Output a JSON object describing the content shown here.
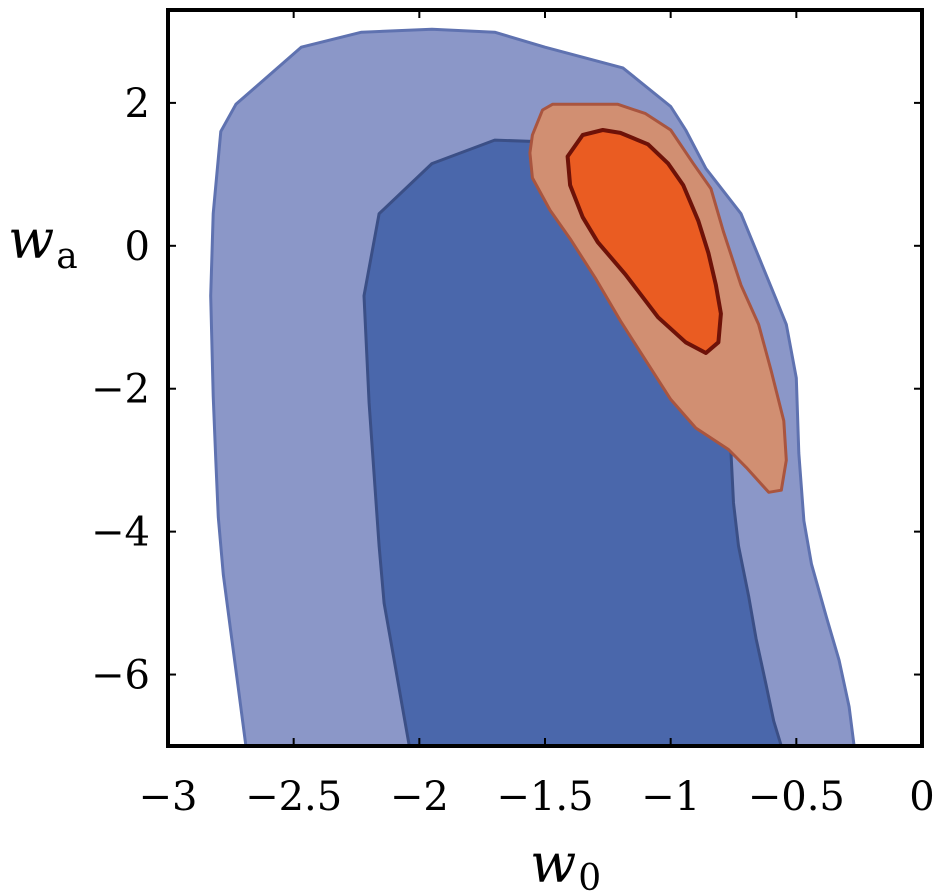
{
  "chart_data": {
    "type": "contour",
    "title": "",
    "xlabel": "w",
    "xlabel_sub": "0",
    "ylabel": "w",
    "ylabel_sub": "a",
    "xlim": [
      -3,
      0
    ],
    "ylim": [
      -7,
      3.3
    ],
    "xticks": [
      -3,
      -2.5,
      -2,
      -1.5,
      -1,
      -0.5,
      0
    ],
    "xtick_labels": [
      "−3",
      "−2.5",
      "−2",
      "−1.5",
      "−1",
      "−0.5",
      "0"
    ],
    "yticks": [
      -6,
      -4,
      -2,
      0,
      2
    ],
    "ytick_labels": [
      "−6",
      "−4",
      "−2",
      "0",
      "2"
    ],
    "grid": false,
    "legend": "none",
    "colors": {
      "blue_outer_fill": "#8b97c8",
      "blue_outer_stroke": "#5f72b0",
      "blue_inner_fill": "#4a67ab",
      "blue_inner_stroke": "#3b4f86",
      "orange_outer_fill": "#d18f72",
      "orange_outer_stroke": "#a9553f",
      "orange_inner_fill": "#ea5c22",
      "orange_inner_stroke": "#6e1208"
    },
    "contours": [
      {
        "id": "blue-outer",
        "level": "outer",
        "fill": "#8b97c8",
        "stroke": "#5f72b0",
        "points": [
          [
            -2.69,
            -7.0
          ],
          [
            -2.72,
            -6.2
          ],
          [
            -2.75,
            -5.4
          ],
          [
            -2.78,
            -4.6
          ],
          [
            -2.8,
            -3.8
          ],
          [
            -2.81,
            -3.0
          ],
          [
            -2.82,
            -2.1
          ],
          [
            -2.83,
            -0.7
          ],
          [
            -2.82,
            0.45
          ],
          [
            -2.79,
            1.6
          ],
          [
            -2.73,
            1.98
          ],
          [
            -2.47,
            2.78
          ],
          [
            -2.23,
            2.99
          ],
          [
            -1.95,
            3.03
          ],
          [
            -1.7,
            2.99
          ],
          [
            -1.5,
            2.78
          ],
          [
            -1.19,
            2.49
          ],
          [
            -1.0,
            1.95
          ],
          [
            -0.94,
            1.62
          ],
          [
            -0.86,
            1.08
          ],
          [
            -0.72,
            0.45
          ],
          [
            -0.65,
            -0.15
          ],
          [
            -0.58,
            -0.75
          ],
          [
            -0.54,
            -1.1
          ],
          [
            -0.5,
            -1.85
          ],
          [
            -0.49,
            -2.9
          ],
          [
            -0.47,
            -3.85
          ],
          [
            -0.44,
            -4.45
          ],
          [
            -0.38,
            -5.2
          ],
          [
            -0.33,
            -5.8
          ],
          [
            -0.29,
            -6.45
          ],
          [
            -0.27,
            -7.0
          ]
        ]
      },
      {
        "id": "blue-inner",
        "level": "inner",
        "fill": "#4a67ab",
        "stroke": "#3b4f86",
        "points": [
          [
            -2.04,
            -7.0
          ],
          [
            -2.07,
            -6.4
          ],
          [
            -2.1,
            -5.8
          ],
          [
            -2.14,
            -5.0
          ],
          [
            -2.16,
            -4.2
          ],
          [
            -2.18,
            -3.2
          ],
          [
            -2.2,
            -2.2
          ],
          [
            -2.22,
            -0.7
          ],
          [
            -2.16,
            0.45
          ],
          [
            -1.95,
            1.15
          ],
          [
            -1.7,
            1.48
          ],
          [
            -1.46,
            1.45
          ],
          [
            -1.34,
            0.85
          ],
          [
            -1.23,
            0.15
          ],
          [
            -1.11,
            -0.45
          ],
          [
            -0.97,
            -1.15
          ],
          [
            -0.86,
            -1.75
          ],
          [
            -0.79,
            -2.35
          ],
          [
            -0.76,
            -2.9
          ],
          [
            -0.75,
            -3.6
          ],
          [
            -0.73,
            -4.2
          ],
          [
            -0.69,
            -4.9
          ],
          [
            -0.66,
            -5.5
          ],
          [
            -0.62,
            -6.15
          ],
          [
            -0.59,
            -6.65
          ],
          [
            -0.56,
            -7.0
          ]
        ]
      },
      {
        "id": "orange-outer",
        "level": "outer",
        "fill": "#d18f72",
        "stroke": "#a9553f",
        "points": [
          [
            -1.55,
            1.55
          ],
          [
            -1.51,
            1.9
          ],
          [
            -1.47,
            1.98
          ],
          [
            -1.21,
            1.98
          ],
          [
            -1.1,
            1.85
          ],
          [
            -1.0,
            1.62
          ],
          [
            -0.91,
            1.15
          ],
          [
            -0.84,
            0.8
          ],
          [
            -0.79,
            0.2
          ],
          [
            -0.72,
            -0.55
          ],
          [
            -0.65,
            -1.1
          ],
          [
            -0.6,
            -1.75
          ],
          [
            -0.55,
            -2.45
          ],
          [
            -0.54,
            -3.0
          ],
          [
            -0.56,
            -3.42
          ],
          [
            -0.61,
            -3.45
          ],
          [
            -0.7,
            -3.1
          ],
          [
            -0.77,
            -2.85
          ],
          [
            -0.9,
            -2.55
          ],
          [
            -1.0,
            -2.15
          ],
          [
            -1.1,
            -1.6
          ],
          [
            -1.2,
            -1.05
          ],
          [
            -1.3,
            -0.45
          ],
          [
            -1.4,
            0.1
          ],
          [
            -1.48,
            0.5
          ],
          [
            -1.55,
            0.95
          ],
          [
            -1.56,
            1.3
          ]
        ]
      },
      {
        "id": "orange-inner",
        "level": "inner",
        "fill": "#ea5c22",
        "stroke": "#6e1208",
        "points": [
          [
            -1.41,
            1.25
          ],
          [
            -1.35,
            1.55
          ],
          [
            -1.27,
            1.62
          ],
          [
            -1.2,
            1.58
          ],
          [
            -1.09,
            1.42
          ],
          [
            -1.01,
            1.15
          ],
          [
            -0.95,
            0.85
          ],
          [
            -0.89,
            0.35
          ],
          [
            -0.85,
            -0.1
          ],
          [
            -0.82,
            -0.55
          ],
          [
            -0.8,
            -0.95
          ],
          [
            -0.81,
            -1.35
          ],
          [
            -0.86,
            -1.5
          ],
          [
            -0.94,
            -1.35
          ],
          [
            -1.05,
            -1.0
          ],
          [
            -1.18,
            -0.4
          ],
          [
            -1.29,
            0.05
          ],
          [
            -1.35,
            0.4
          ],
          [
            -1.4,
            0.85
          ]
        ]
      }
    ]
  }
}
